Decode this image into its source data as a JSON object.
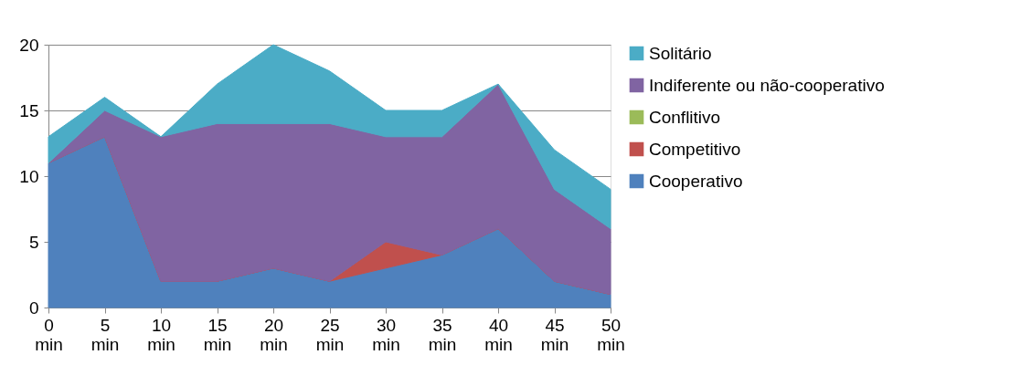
{
  "chart_data": {
    "type": "area",
    "stacked": true,
    "categories": [
      "0 min",
      "5 min",
      "10 min",
      "15 min",
      "20 min",
      "25 min",
      "30 min",
      "35 min",
      "40 min",
      "45 min",
      "50 min"
    ],
    "series": [
      {
        "name": "Cooperativo",
        "color": "#4f81bd",
        "values": [
          11,
          13,
          2,
          2,
          3,
          2,
          3,
          4,
          6,
          2,
          1
        ]
      },
      {
        "name": "Competitivo",
        "color": "#c0504d",
        "values": [
          0,
          0,
          0,
          0,
          0,
          0,
          2,
          0,
          0,
          0,
          0
        ]
      },
      {
        "name": "Conflitivo",
        "color": "#9bbb59",
        "values": [
          null,
          null,
          null,
          null,
          null,
          null,
          null,
          null,
          null,
          null,
          null
        ]
      },
      {
        "name": "Indiferente ou não-cooperativo",
        "color": "#8064a2",
        "values": [
          0,
          2,
          11,
          12,
          11,
          12,
          8,
          9,
          11,
          7,
          5
        ]
      },
      {
        "name": "Solitário",
        "color": "#4bacc6",
        "values": [
          2,
          1,
          0,
          3,
          6,
          4,
          2,
          2,
          0,
          3,
          3
        ]
      }
    ],
    "ylim": [
      0,
      20
    ],
    "yticks": [
      0,
      5,
      10,
      15,
      20
    ],
    "grid": "y",
    "legend": "right"
  }
}
